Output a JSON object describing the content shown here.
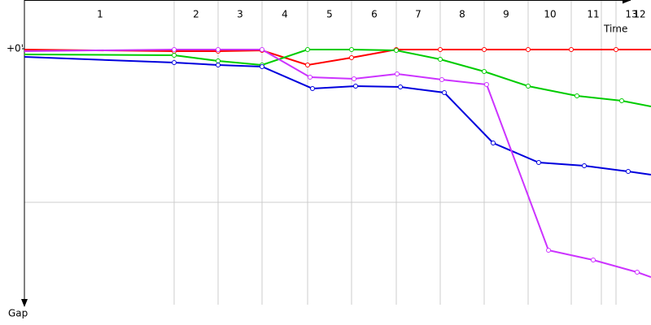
{
  "chart_data": {
    "type": "line",
    "x_label": "Time",
    "y_label": "Gap",
    "xlim": [
      0,
      770
    ],
    "ylim": [
      -60,
      315
    ],
    "yticks": [
      {
        "value": 0,
        "label": "+0'"
      }
    ],
    "ygrid": [
      189
    ],
    "lap_lines": [
      184,
      238,
      292,
      348,
      402,
      457,
      511,
      565,
      619,
      672,
      709,
      727
    ],
    "lap_labels": [
      "1",
      "2",
      "3",
      "4",
      "5",
      "6",
      "7",
      "8",
      "9",
      "10",
      "11",
      "13",
      "12"
    ],
    "lap_label_x": [
      93,
      211,
      265,
      320,
      375,
      430,
      484,
      538,
      592,
      646,
      699,
      746,
      756
    ],
    "series": [
      {
        "color": "#ff0000",
        "x": [
          0,
          184,
          238,
          292,
          348,
          402,
          457,
          511,
          565,
          619,
          672,
          727,
          770
        ],
        "values": [
          1,
          3,
          3,
          2,
          20,
          11,
          1,
          1,
          1,
          1,
          1,
          1,
          1
        ]
      },
      {
        "color": "#00cc00",
        "x": [
          0,
          184,
          238,
          292,
          348,
          402,
          457,
          511,
          565,
          619,
          679,
          734,
          770
        ],
        "values": [
          7,
          8,
          15,
          20,
          1,
          1,
          2,
          13,
          28,
          46,
          58,
          64,
          71
        ]
      },
      {
        "color": "#0000dd",
        "x": [
          0,
          184,
          238,
          292,
          354,
          407,
          462,
          516,
          576,
          632,
          688,
          742,
          770
        ],
        "values": [
          10,
          17,
          20,
          22,
          49,
          46,
          47,
          54,
          116,
          140,
          144,
          151,
          155
        ]
      },
      {
        "color": "#cc33ff",
        "x": [
          0,
          184,
          238,
          292,
          351,
          405,
          458,
          513,
          568,
          644,
          699,
          753,
          770
        ],
        "values": [
          3,
          1,
          1,
          1,
          35,
          37,
          31,
          38,
          44,
          248,
          260,
          275,
          281
        ]
      }
    ]
  }
}
